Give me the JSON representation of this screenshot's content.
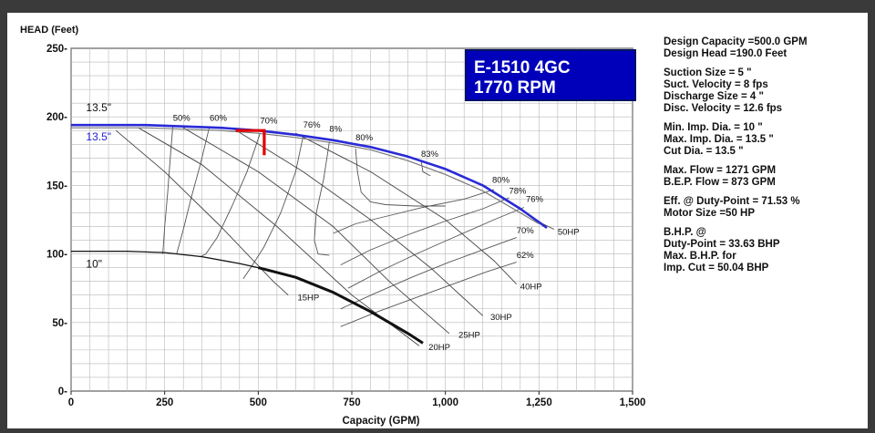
{
  "chart_data": {
    "type": "line",
    "ylabel": "HEAD (Feet)",
    "xlabel": "Capacity (GPM)",
    "xlim": [
      0,
      1500
    ],
    "ylim": [
      0,
      250
    ],
    "grid": true,
    "x_ticks": [
      0,
      250,
      500,
      750,
      1000,
      1250,
      1500
    ],
    "x_tick_labels": [
      "0",
      "250",
      "500",
      "750",
      "1,000",
      "1,250",
      "1,500"
    ],
    "y_ticks": [
      0,
      50,
      100,
      150,
      200,
      250
    ],
    "y_tick_labels": [
      "0-",
      "50-",
      "100-",
      "150-",
      "200-",
      "250-"
    ],
    "title_box": [
      "E-1510 4GC",
      "1770 RPM"
    ],
    "title_box_color": "#0000bb",
    "series": [
      {
        "name": "13.5\"",
        "color": "#2a2ad6",
        "width": 2.6,
        "x": [
          0,
          200,
          400,
          500,
          600,
          700,
          800,
          900,
          1000,
          1100,
          1200,
          1271
        ],
        "y": [
          194,
          194,
          192,
          190,
          187,
          183,
          178,
          171,
          162,
          150,
          133,
          119
        ]
      },
      {
        "name": "13.5\"",
        "color": "#777777",
        "width": 1.2,
        "x": [
          0,
          200,
          400,
          500,
          600,
          700,
          800,
          900,
          1000,
          1100,
          1200,
          1250
        ],
        "y": [
          192,
          192,
          190,
          188,
          185,
          181,
          176,
          168,
          158,
          146,
          130,
          122
        ]
      },
      {
        "name": "10\"",
        "color": "#111111",
        "width": 1.3,
        "x": [
          0,
          150,
          250,
          350,
          450,
          500
        ],
        "y": [
          102,
          102,
          101,
          98,
          93,
          90
        ]
      },
      {
        "name": "10\"",
        "color": "#111111",
        "width": 3,
        "x": [
          500,
          600,
          700,
          800,
          900,
          940
        ],
        "y": [
          90,
          83,
          72,
          58,
          42,
          35
        ]
      }
    ],
    "efficiency_curves": [
      {
        "label": "50%",
        "x": [
          272,
          265,
          258,
          250,
          245
        ],
        "y": [
          194,
          170,
          145,
          120,
          100
        ]
      },
      {
        "label": "60%",
        "x": [
          370,
          345,
          320,
          300,
          282
        ],
        "y": [
          193,
          165,
          140,
          118,
          100
        ]
      },
      {
        "label": "70%",
        "x": [
          505,
          470,
          430,
          390,
          360,
          345
        ],
        "y": [
          188,
          160,
          135,
          112,
          100,
          98
        ]
      },
      {
        "label": "76%",
        "x": [
          620,
          600,
          560,
          515,
          480,
          460
        ],
        "y": [
          186,
          160,
          130,
          105,
          90,
          82
        ]
      },
      {
        "label": "8%",
        "x": [
          690,
          675,
          655,
          650,
          660,
          690
        ],
        "y": [
          182,
          155,
          130,
          110,
          100,
          99
        ]
      },
      {
        "label": "80%",
        "x": [
          760,
          765,
          775,
          800,
          840,
          920,
          1000
        ],
        "y": [
          177,
          160,
          145,
          138,
          136,
          135,
          135
        ]
      },
      {
        "label": "83%",
        "x": [
          935,
          940,
          960
        ],
        "y": [
          168,
          160,
          157
        ]
      },
      {
        "label": "80%",
        "x": [
          1130,
          1050,
          940,
          850,
          760,
          700
        ],
        "y": [
          147,
          140,
          134,
          128,
          122,
          115
        ]
      },
      {
        "label": "78%",
        "x": [
          1170,
          1100,
          1000,
          900,
          800,
          720
        ],
        "y": [
          141,
          133,
          124,
          114,
          103,
          92
        ]
      },
      {
        "label": "76%",
        "x": [
          1210,
          1130,
          1030,
          930,
          830,
          740
        ],
        "y": [
          134,
          125,
          113,
          101,
          88,
          75
        ]
      },
      {
        "label": "70%",
        "x": [
          1190,
          1110,
          1010,
          910,
          810,
          720
        ],
        "y": [
          112,
          104,
          94,
          83,
          71,
          60
        ]
      },
      {
        "label": "62%",
        "x": [
          1190,
          1110,
          1010,
          910,
          810,
          720
        ],
        "y": [
          94,
          87,
          77,
          67,
          57,
          47
        ]
      }
    ],
    "horsepower_lines": [
      {
        "label": "15HP",
        "x": [
          120,
          250,
          400,
          540,
          580
        ],
        "y": [
          190,
          160,
          120,
          80,
          70
        ]
      },
      {
        "label": "20HP",
        "x": [
          180,
          350,
          550,
          750,
          930
        ],
        "y": [
          192,
          165,
          120,
          70,
          33
        ]
      },
      {
        "label": "25HP",
        "x": [
          300,
          500,
          700,
          850,
          1010
        ],
        "y": [
          192,
          160,
          120,
          80,
          42
        ]
      },
      {
        "label": "30HP",
        "x": [
          430,
          620,
          800,
          960,
          1100
        ],
        "y": [
          192,
          160,
          125,
          90,
          55
        ]
      },
      {
        "label": "40HP",
        "x": [
          600,
          800,
          1000,
          1130,
          1190
        ],
        "y": [
          188,
          160,
          125,
          95,
          78
        ]
      },
      {
        "label": "50HP",
        "x": [
          1200,
          1260,
          1290
        ],
        "y": [
          133,
          122,
          118
        ]
      }
    ],
    "duty_point": {
      "x": [
        440,
        516,
        516
      ],
      "y": [
        190,
        190,
        172
      ],
      "color": "#e00000"
    },
    "annotations": [
      {
        "text": "13.5\"",
        "x": 40,
        "y": 204,
        "color": "#111111"
      },
      {
        "text": "13.5\"",
        "x": 40,
        "y": 183,
        "color": "#2222cc"
      },
      {
        "text": "10\"",
        "x": 40,
        "y": 90,
        "color": "#111111"
      },
      {
        "text": "50%",
        "x": 272,
        "y": 197,
        "color": "#111111"
      },
      {
        "text": "60%",
        "x": 370,
        "y": 197,
        "color": "#111111"
      },
      {
        "text": "70%",
        "x": 505,
        "y": 195,
        "color": "#111111"
      },
      {
        "text": "76%",
        "x": 620,
        "y": 192,
        "color": "#111111"
      },
      {
        "text": "8%",
        "x": 690,
        "y": 189,
        "color": "#111111"
      },
      {
        "text": "80%",
        "x": 760,
        "y": 183,
        "color": "#111111"
      },
      {
        "text": "83%",
        "x": 935,
        "y": 171,
        "color": "#111111"
      },
      {
        "text": "80%",
        "x": 1125,
        "y": 152,
        "color": "#111111"
      },
      {
        "text": "78%",
        "x": 1170,
        "y": 144,
        "color": "#111111"
      },
      {
        "text": "76%",
        "x": 1215,
        "y": 138,
        "color": "#111111"
      },
      {
        "text": "70%",
        "x": 1190,
        "y": 115,
        "color": "#111111"
      },
      {
        "text": "62%",
        "x": 1190,
        "y": 97,
        "color": "#111111"
      },
      {
        "text": "15HP",
        "x": 605,
        "y": 66,
        "color": "#111111"
      },
      {
        "text": "20HP",
        "x": 955,
        "y": 30,
        "color": "#111111"
      },
      {
        "text": "25HP",
        "x": 1035,
        "y": 39,
        "color": "#111111"
      },
      {
        "text": "30HP",
        "x": 1120,
        "y": 52,
        "color": "#111111"
      },
      {
        "text": "40HP",
        "x": 1200,
        "y": 74,
        "color": "#111111"
      },
      {
        "text": "50HP",
        "x": 1300,
        "y": 114,
        "color": "#111111"
      }
    ]
  },
  "specs": [
    [
      "Design Capacity =500.0 GPM",
      "Design Head =190.0 Feet"
    ],
    [
      "Suction Size = 5 \"",
      "Suct. Velocity =  8 fps",
      "Discharge Size = 4 \"",
      "Disc. Velocity =  12.6 fps"
    ],
    [
      "Min. Imp. Dia. = 10 \"",
      "Max. Imp. Dia. = 13.5 \"",
      "Cut Dia. = 13.5 \""
    ],
    [
      "Max. Flow = 1271 GPM",
      "B.E.P. Flow  = 873 GPM"
    ],
    [
      "Eff. @ Duty-Point = 71.53 %",
      "Motor Size =50 HP"
    ],
    [
      "B.H.P. @",
      "Duty-Point = 33.63 BHP",
      "Max. B.H.P. for",
      "Imp. Cut = 50.04 BHP"
    ]
  ]
}
